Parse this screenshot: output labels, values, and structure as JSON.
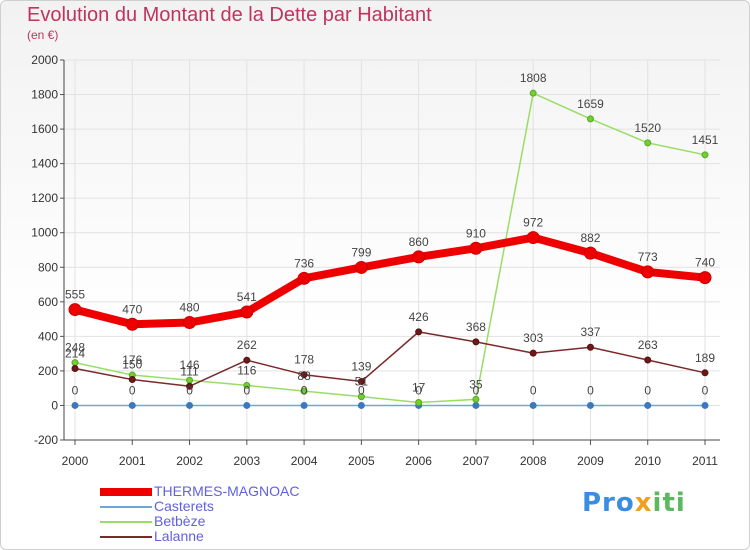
{
  "title": "Evolution du Montant de la Dette par Habitant",
  "subtitle": "(en €)",
  "logo": {
    "text_a": "Pro",
    "text_b": "x",
    "text_c": "iti"
  },
  "chart_data": {
    "type": "line",
    "title": "Evolution du Montant de la Dette par Habitant",
    "subtitle": "(en €)",
    "xlabel": "",
    "ylabel": "",
    "x": [
      "2000",
      "2001",
      "2002",
      "2003",
      "2004",
      "2005",
      "2006",
      "2007",
      "2008",
      "2009",
      "2010",
      "2011"
    ],
    "ylim": [
      -200,
      2000
    ],
    "yticks": [
      -200,
      0,
      200,
      400,
      600,
      800,
      1000,
      1200,
      1400,
      1600,
      1800,
      2000
    ],
    "legend_placement": "bottom-left",
    "series": [
      {
        "name": "THERMES-MAGNOAC",
        "color": "#ee0000",
        "values": [
          555,
          470,
          480,
          541,
          736,
          799,
          860,
          910,
          972,
          882,
          773,
          740
        ]
      },
      {
        "name": "Casterets",
        "color": "#6fa8d6",
        "values": [
          0,
          0,
          0,
          0,
          0,
          0,
          0,
          0,
          0,
          0,
          0,
          0
        ]
      },
      {
        "name": "Betbèze",
        "color": "#99dd66",
        "values": [
          248,
          176,
          146,
          116,
          83,
          51,
          17,
          35,
          1808,
          1659,
          1520,
          1451
        ]
      },
      {
        "name": "Lalanne",
        "color": "#7a2a2a",
        "values": [
          214,
          150,
          111,
          262,
          178,
          139,
          426,
          368,
          303,
          337,
          263,
          189
        ]
      }
    ]
  }
}
